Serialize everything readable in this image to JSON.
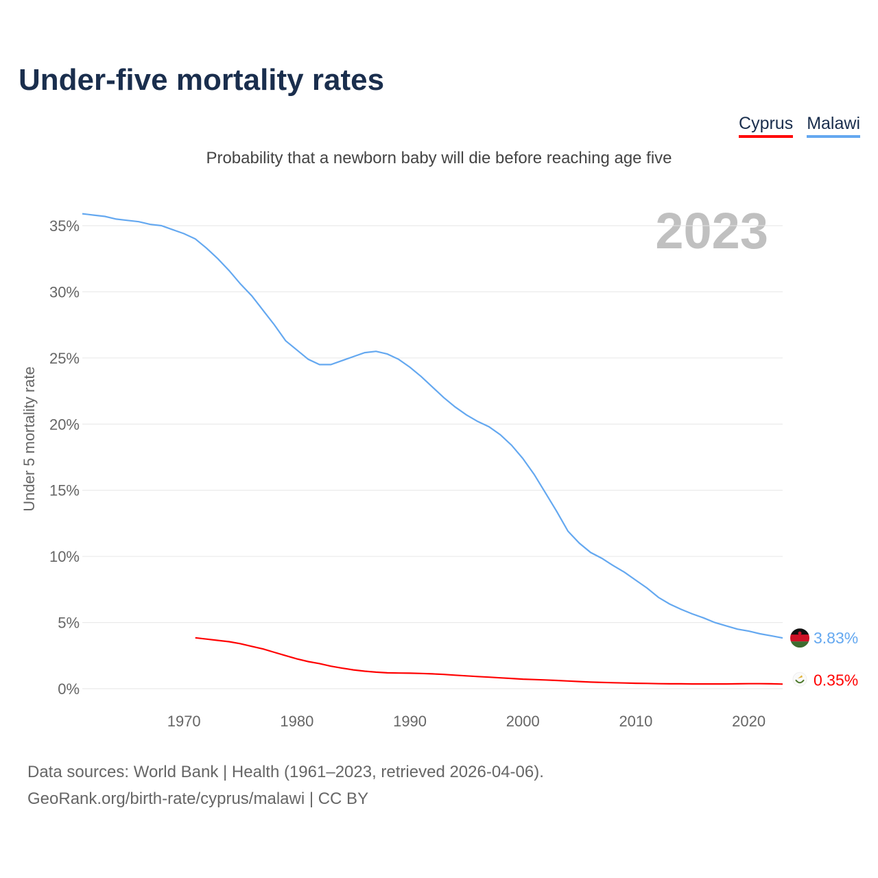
{
  "title": "Under-five mortality rates",
  "legend": [
    {
      "name": "Cyprus",
      "color": "#ff0000"
    },
    {
      "name": "Malawi",
      "color": "#64a8f0"
    }
  ],
  "subtitle": "Probability that a newborn baby will die before reaching age five",
  "footer": {
    "line1": "Data sources: World Bank | Health (1961–2023, retrieved 2026-04-06).",
    "line2": "GeoRank.org/birth-rate/cyprus/malawi | CC BY"
  },
  "chart_data": {
    "type": "line",
    "year_label": "2023",
    "ylabel": "Under 5 mortality rate",
    "xlim": [
      1961,
      2023
    ],
    "ylim": [
      0,
      36
    ],
    "xticks": [
      1970,
      1980,
      1990,
      2000,
      2010,
      2020
    ],
    "yticks": [
      0,
      5,
      10,
      15,
      20,
      25,
      30,
      35
    ],
    "ytick_labels": [
      "0%",
      "5%",
      "10%",
      "15%",
      "20%",
      "25%",
      "30%",
      "35%"
    ],
    "grid": true,
    "series": [
      {
        "name": "Malawi",
        "color": "#64a8f0",
        "flag": "malawi-flag",
        "end_label": "3.83%",
        "start": 1961,
        "values": [
          35.9,
          35.8,
          35.7,
          35.5,
          35.4,
          35.3,
          35.1,
          35.0,
          34.7,
          34.4,
          34.0,
          33.3,
          32.5,
          31.6,
          30.6,
          29.7,
          28.6,
          27.5,
          26.3,
          25.6,
          24.9,
          24.5,
          24.5,
          24.8,
          25.1,
          25.4,
          25.5,
          25.3,
          24.9,
          24.3,
          23.6,
          22.8,
          22.0,
          21.3,
          20.7,
          20.2,
          19.8,
          19.2,
          18.4,
          17.4,
          16.2,
          14.8,
          13.4,
          11.9,
          11.0,
          10.3,
          9.85,
          9.3,
          8.8,
          8.2,
          7.6,
          6.9,
          6.4,
          6.0,
          5.65,
          5.35,
          5.0,
          4.75,
          4.5,
          4.35,
          4.15,
          4.0,
          3.83
        ]
      },
      {
        "name": "Cyprus",
        "color": "#ff0000",
        "flag": "cyprus-flag",
        "end_label": "0.35%",
        "start": 1971,
        "values": [
          3.85,
          3.75,
          3.65,
          3.55,
          3.4,
          3.2,
          3.0,
          2.75,
          2.5,
          2.25,
          2.05,
          1.9,
          1.7,
          1.55,
          1.42,
          1.32,
          1.25,
          1.2,
          1.18,
          1.17,
          1.15,
          1.12,
          1.08,
          1.02,
          0.97,
          0.92,
          0.87,
          0.82,
          0.77,
          0.72,
          0.69,
          0.66,
          0.62,
          0.58,
          0.54,
          0.5,
          0.47,
          0.45,
          0.43,
          0.41,
          0.4,
          0.38,
          0.37,
          0.37,
          0.36,
          0.36,
          0.36,
          0.36,
          0.37,
          0.38,
          0.38,
          0.37,
          0.35
        ]
      }
    ]
  }
}
